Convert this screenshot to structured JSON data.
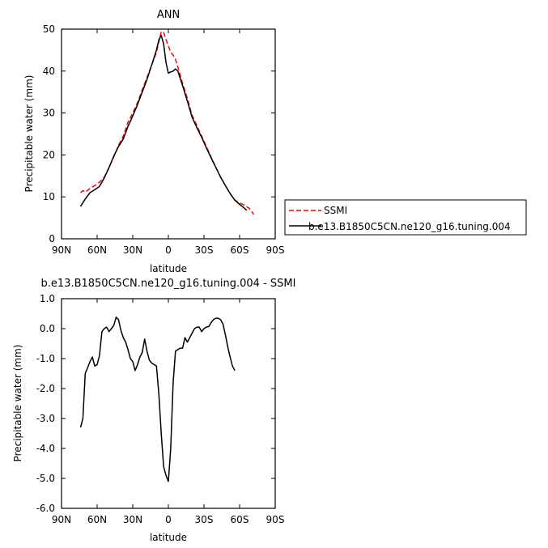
{
  "chart_data": [
    {
      "type": "line",
      "title": "ANN",
      "xlabel": "latitude",
      "ylabel": "Precipitable water (mm)",
      "xlim": [
        90,
        -90
      ],
      "ylim": [
        0,
        50
      ],
      "xticks": [
        {
          "value": 90,
          "label": "90N"
        },
        {
          "value": 60,
          "label": "60N"
        },
        {
          "value": 30,
          "label": "30N"
        },
        {
          "value": 0,
          "label": "0"
        },
        {
          "value": -30,
          "label": "30S"
        },
        {
          "value": -60,
          "label": "60S"
        },
        {
          "value": -90,
          "label": "90S"
        }
      ],
      "yticks": [
        {
          "value": 0,
          "label": "0"
        },
        {
          "value": 10,
          "label": "10"
        },
        {
          "value": 20,
          "label": "20"
        },
        {
          "value": 30,
          "label": "30"
        },
        {
          "value": 40,
          "label": "40"
        },
        {
          "value": 50,
          "label": "50"
        }
      ],
      "legend_position": "right",
      "series": [
        {
          "name": "SSMI",
          "color": "#ff0000",
          "dash": "dashed",
          "points": [
            [
              74,
              11.0
            ],
            [
              72,
              11.5
            ],
            [
              70,
              11.1
            ],
            [
              66,
              12.0
            ],
            [
              62,
              12.7
            ],
            [
              58,
              13.5
            ],
            [
              54,
              14.7
            ],
            [
              50,
              17.0
            ],
            [
              46,
              19.5
            ],
            [
              42,
              22.3
            ],
            [
              38,
              24.5
            ],
            [
              34,
              27.8
            ],
            [
              30,
              30.0
            ],
            [
              26,
              32.5
            ],
            [
              22,
              35.5
            ],
            [
              18,
              38.5
            ],
            [
              14,
              41.5
            ],
            [
              10,
              44.5
            ],
            [
              8,
              47.0
            ],
            [
              6,
              49.4
            ],
            [
              4,
              49.2
            ],
            [
              2,
              47.5
            ],
            [
              0,
              46.0
            ],
            [
              -2,
              44.5
            ],
            [
              -4,
              43.8
            ],
            [
              -6,
              42.8
            ],
            [
              -8,
              41.0
            ],
            [
              -12,
              37.0
            ],
            [
              -16,
              33.5
            ],
            [
              -20,
              29.5
            ],
            [
              -24,
              27.0
            ],
            [
              -28,
              24.5
            ],
            [
              -32,
              22.0
            ],
            [
              -36,
              19.5
            ],
            [
              -40,
              17.0
            ],
            [
              -44,
              14.8
            ],
            [
              -48,
              12.7
            ],
            [
              -52,
              10.8
            ],
            [
              -56,
              9.2
            ],
            [
              -60,
              8.6
            ],
            [
              -64,
              8.0
            ],
            [
              -68,
              7.3
            ],
            [
              -70,
              6.6
            ],
            [
              -72,
              5.8
            ]
          ]
        },
        {
          "name": "b.e13.B1850C5CN.ne120_g16.tuning.004",
          "color": "#000000",
          "dash": "solid",
          "points": [
            [
              74,
              7.7
            ],
            [
              70,
              9.5
            ],
            [
              66,
              11.0
            ],
            [
              62,
              11.7
            ],
            [
              58,
              12.5
            ],
            [
              54,
              14.5
            ],
            [
              50,
              17.0
            ],
            [
              46,
              19.7
            ],
            [
              42,
              22.0
            ],
            [
              38,
              23.8
            ],
            [
              34,
              26.8
            ],
            [
              30,
              29.3
            ],
            [
              26,
              32.0
            ],
            [
              22,
              35.0
            ],
            [
              18,
              38.0
            ],
            [
              14,
              41.5
            ],
            [
              10,
              45.0
            ],
            [
              8,
              47.5
            ],
            [
              6,
              48.5
            ],
            [
              4,
              46.5
            ],
            [
              2,
              42.0
            ],
            [
              0,
              39.5
            ],
            [
              -2,
              39.8
            ],
            [
              -4,
              40.0
            ],
            [
              -6,
              40.5
            ],
            [
              -8,
              40.0
            ],
            [
              -12,
              36.5
            ],
            [
              -16,
              32.8
            ],
            [
              -20,
              29.0
            ],
            [
              -24,
              26.5
            ],
            [
              -28,
              24.2
            ],
            [
              -32,
              21.7
            ],
            [
              -36,
              19.3
            ],
            [
              -40,
              17.0
            ],
            [
              -44,
              14.7
            ],
            [
              -48,
              12.7
            ],
            [
              -52,
              10.8
            ],
            [
              -56,
              9.2
            ],
            [
              -60,
              8.2
            ],
            [
              -64,
              7.3
            ],
            [
              -66,
              6.8
            ]
          ]
        }
      ]
    },
    {
      "type": "line",
      "title": "b.e13.B1850C5CN.ne120_g16.tuning.004  -  SSMI",
      "xlabel": "latitude",
      "ylabel": "Precipitable water (mm)",
      "xlim": [
        90,
        -90
      ],
      "ylim": [
        -6.0,
        1.0
      ],
      "xticks": [
        {
          "value": 90,
          "label": "90N"
        },
        {
          "value": 60,
          "label": "60N"
        },
        {
          "value": 30,
          "label": "30N"
        },
        {
          "value": 0,
          "label": "0"
        },
        {
          "value": -30,
          "label": "30S"
        },
        {
          "value": -60,
          "label": "60S"
        },
        {
          "value": -90,
          "label": "90S"
        }
      ],
      "yticks": [
        {
          "value": 1.0,
          "label": "1.0"
        },
        {
          "value": 0.0,
          "label": "0.0"
        },
        {
          "value": -1.0,
          "label": "-1.0"
        },
        {
          "value": -2.0,
          "label": "-2.0"
        },
        {
          "value": -3.0,
          "label": "-3.0"
        },
        {
          "value": -4.0,
          "label": "-4.0"
        },
        {
          "value": -5.0,
          "label": "-5.0"
        },
        {
          "value": -6.0,
          "label": "-6.0"
        }
      ],
      "series": [
        {
          "color": "#000000",
          "dash": "solid",
          "points": [
            [
              74,
              -3.3
            ],
            [
              72,
              -3.0
            ],
            [
              70,
              -1.5
            ],
            [
              68,
              -1.3
            ],
            [
              66,
              -1.1
            ],
            [
              64,
              -0.95
            ],
            [
              62,
              -1.25
            ],
            [
              60,
              -1.2
            ],
            [
              58,
              -0.9
            ],
            [
              56,
              -0.1
            ],
            [
              54,
              0.0
            ],
            [
              52,
              0.05
            ],
            [
              50,
              -0.1
            ],
            [
              48,
              0.0
            ],
            [
              46,
              0.1
            ],
            [
              44,
              0.38
            ],
            [
              42,
              0.3
            ],
            [
              40,
              -0.05
            ],
            [
              38,
              -0.3
            ],
            [
              36,
              -0.45
            ],
            [
              34,
              -0.7
            ],
            [
              32,
              -1.0
            ],
            [
              30,
              -1.1
            ],
            [
              28,
              -1.4
            ],
            [
              26,
              -1.2
            ],
            [
              24,
              -0.95
            ],
            [
              22,
              -0.8
            ],
            [
              20,
              -0.35
            ],
            [
              18,
              -0.75
            ],
            [
              16,
              -1.05
            ],
            [
              14,
              -1.15
            ],
            [
              12,
              -1.2
            ],
            [
              10,
              -1.25
            ],
            [
              8,
              -2.2
            ],
            [
              6,
              -3.5
            ],
            [
              4,
              -4.6
            ],
            [
              2,
              -4.9
            ],
            [
              0,
              -5.1
            ],
            [
              -2,
              -4.0
            ],
            [
              -4,
              -1.8
            ],
            [
              -6,
              -0.75
            ],
            [
              -8,
              -0.7
            ],
            [
              -10,
              -0.65
            ],
            [
              -12,
              -0.65
            ],
            [
              -14,
              -0.3
            ],
            [
              -16,
              -0.45
            ],
            [
              -18,
              -0.3
            ],
            [
              -20,
              -0.15
            ],
            [
              -22,
              0.0
            ],
            [
              -24,
              0.05
            ],
            [
              -26,
              0.05
            ],
            [
              -28,
              -0.1
            ],
            [
              -30,
              0.0
            ],
            [
              -32,
              0.05
            ],
            [
              -34,
              0.07
            ],
            [
              -36,
              0.2
            ],
            [
              -38,
              0.3
            ],
            [
              -40,
              0.35
            ],
            [
              -42,
              0.35
            ],
            [
              -44,
              0.3
            ],
            [
              -46,
              0.15
            ],
            [
              -48,
              -0.2
            ],
            [
              -50,
              -0.6
            ],
            [
              -52,
              -0.95
            ],
            [
              -54,
              -1.25
            ],
            [
              -56,
              -1.4
            ]
          ]
        }
      ]
    }
  ]
}
